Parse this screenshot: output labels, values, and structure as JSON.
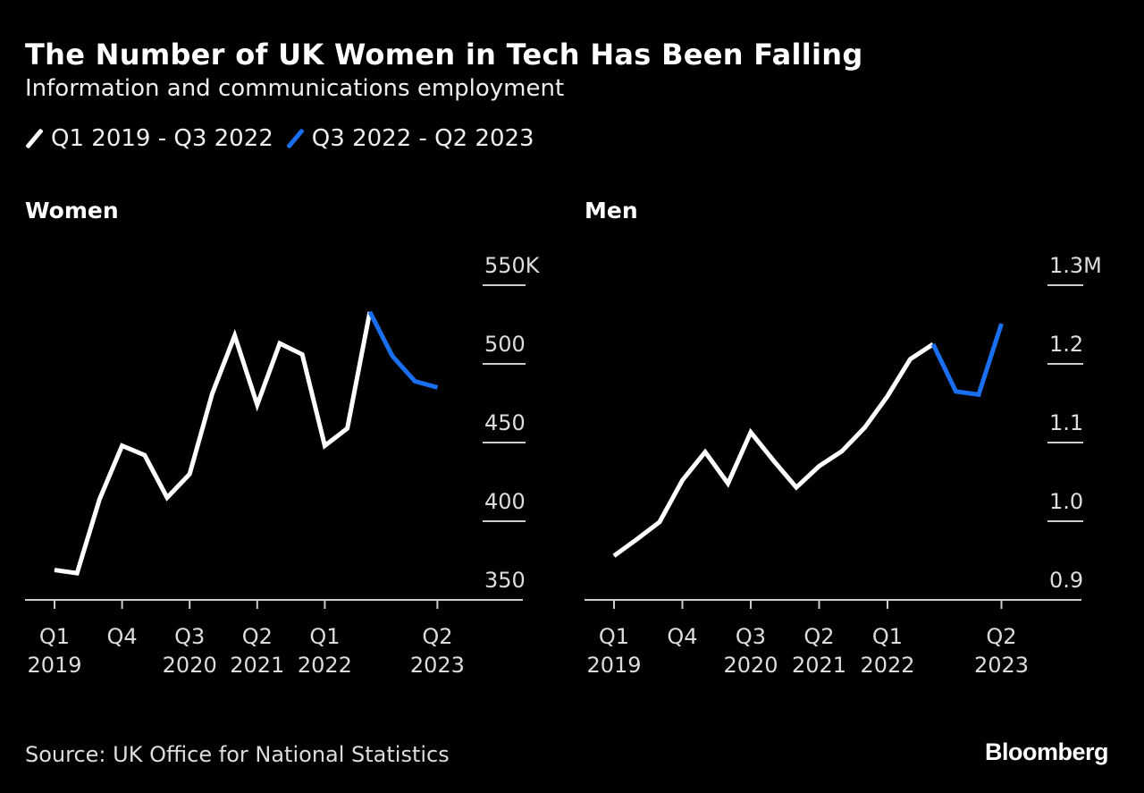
{
  "title": "The Number of UK Women in Tech Has Been Falling",
  "subtitle": "Information and communications employment",
  "legend": [
    {
      "label": "Q1 2019 - Q3 2022",
      "color": "#ffffff"
    },
    {
      "label": "Q3 2022 - Q2 2023",
      "color": "#1a6ff0"
    }
  ],
  "source": "Source: UK Office for National Statistics",
  "logo": "Bloomberg",
  "chart_data": [
    {
      "type": "line",
      "title": "Women",
      "ylim": [
        350,
        550
      ],
      "yticks": [
        350,
        400,
        450,
        500,
        550
      ],
      "ytick_labels": [
        "350",
        "400",
        "450",
        "500",
        "550K"
      ],
      "x": [
        "Q1 2019",
        "Q2 2019",
        "Q3 2019",
        "Q4 2019",
        "Q1 2020",
        "Q2 2020",
        "Q3 2020",
        "Q4 2020",
        "Q1 2021",
        "Q2 2021",
        "Q3 2021",
        "Q4 2021",
        "Q1 2022",
        "Q2 2022",
        "Q3 2022",
        "Q4 2022",
        "Q1 2023",
        "Q2 2023"
      ],
      "xticks": [
        {
          "index": 0,
          "line1": "Q1",
          "line2": "2019"
        },
        {
          "index": 3,
          "line1": "Q4",
          "line2": ""
        },
        {
          "index": 6,
          "line1": "Q3",
          "line2": "2020"
        },
        {
          "index": 9,
          "line1": "Q2",
          "line2": "2021"
        },
        {
          "index": 12,
          "line1": "Q1",
          "line2": "2022"
        },
        {
          "index": 17,
          "line1": "Q2",
          "line2": "2023"
        }
      ],
      "values": [
        369,
        367,
        414,
        448,
        442,
        415,
        430,
        481,
        518,
        474,
        513,
        506,
        448,
        459,
        533,
        505,
        489,
        485
      ],
      "highlight_from_index": 14,
      "grid": false
    },
    {
      "type": "line",
      "title": "Men",
      "ylim": [
        0.9,
        1.3
      ],
      "yticks": [
        0.9,
        1.0,
        1.1,
        1.2,
        1.3
      ],
      "ytick_labels": [
        "0.9",
        "1.0",
        "1.1",
        "1.2",
        "1.3M"
      ],
      "x": [
        "Q1 2019",
        "Q2 2019",
        "Q3 2019",
        "Q4 2019",
        "Q1 2020",
        "Q2 2020",
        "Q3 2020",
        "Q4 2020",
        "Q1 2021",
        "Q2 2021",
        "Q3 2021",
        "Q4 2021",
        "Q1 2022",
        "Q2 2022",
        "Q3 2022",
        "Q4 2022",
        "Q1 2023",
        "Q2 2023"
      ],
      "xticks": [
        {
          "index": 0,
          "line1": "Q1",
          "line2": "2019"
        },
        {
          "index": 3,
          "line1": "Q4",
          "line2": ""
        },
        {
          "index": 6,
          "line1": "Q3",
          "line2": "2020"
        },
        {
          "index": 9,
          "line1": "Q2",
          "line2": "2021"
        },
        {
          "index": 12,
          "line1": "Q1",
          "line2": "2022"
        },
        {
          "index": 17,
          "line1": "Q2",
          "line2": "2023"
        }
      ],
      "values": [
        0.956,
        0.977,
        0.999,
        1.052,
        1.088,
        1.048,
        1.113,
        1.077,
        1.043,
        1.07,
        1.089,
        1.119,
        1.159,
        1.206,
        1.225,
        1.165,
        1.161,
        1.251
      ],
      "highlight_from_index": 14,
      "grid": false
    }
  ]
}
